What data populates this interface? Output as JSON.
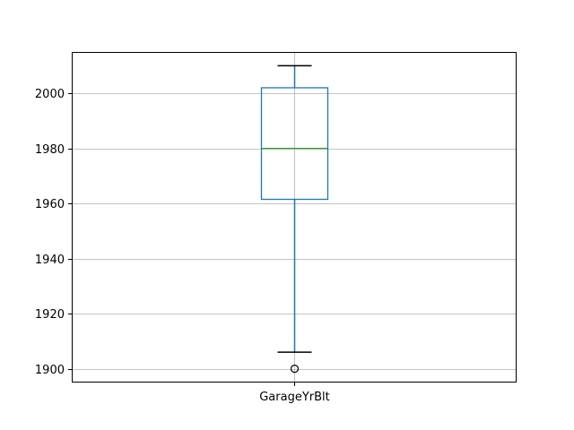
{
  "chart_data": {
    "type": "box",
    "categories": [
      "GarageYrBlt"
    ],
    "series": [
      {
        "category": "GarageYrBlt",
        "whisker_low": 1906,
        "q1": 1961.5,
        "median": 1980,
        "q3": 2002,
        "whisker_high": 2010,
        "outliers": [
          1900
        ]
      }
    ],
    "title": "",
    "xlabel": "",
    "ylabel": "",
    "ylim": [
      1895,
      2015
    ],
    "yticks": [
      1900,
      1920,
      1940,
      1960,
      1980,
      2000
    ],
    "grid": true
  },
  "colors": {
    "box": "#1f77b4",
    "whisker": "#1f77b4",
    "cap": "#000000",
    "median": "#2ca02c",
    "grid": "#b0b0b0",
    "frame": "#000000",
    "outlier_edge": "#000000"
  }
}
